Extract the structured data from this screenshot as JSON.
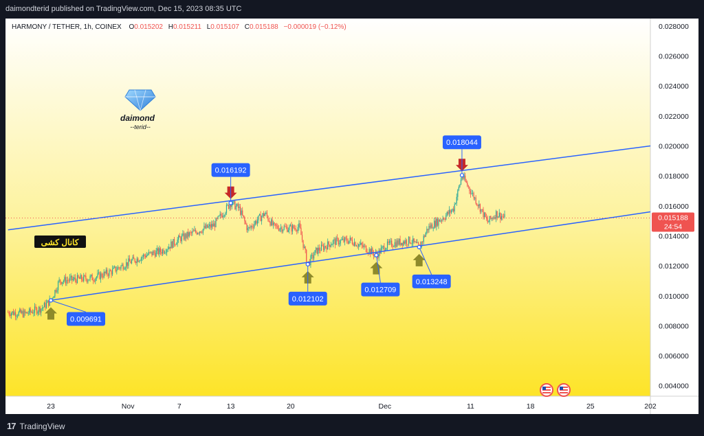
{
  "publisher": "daimondterid published on TradingView.com, Dec 15, 2023 08:35 UTC",
  "footer_brand": "TradingView",
  "watermark": {
    "brand": "daimond",
    "tag": "--terid--",
    "icon": "diamond-icon",
    "channel_label": "کانال کشی"
  },
  "chart_data": {
    "type": "candlestick",
    "symbol": "HARMONY / TETHER, 1h, COINEX",
    "ohlc": {
      "O": "0.015202",
      "H": "0.015211",
      "L": "0.015107",
      "C": "0.015188",
      "change": "−0.000019 (−0.12%)"
    },
    "last_price": "0.015188",
    "countdown": "24:54",
    "ylim": [
      0.0033,
      0.0285
    ],
    "y_ticks": [
      "0.028000",
      "0.026000",
      "0.024000",
      "0.022000",
      "0.020000",
      "0.018000",
      "0.016000",
      "0.014000",
      "0.012000",
      "0.010000",
      "0.008000",
      "0.006000",
      "0.004000"
    ],
    "x_ticks": [
      {
        "label": "23",
        "date": "2023-10-23"
      },
      {
        "label": "Nov",
        "date": "2023-11-01"
      },
      {
        "label": "7",
        "date": "2023-11-07"
      },
      {
        "label": "13",
        "date": "2023-11-13"
      },
      {
        "label": "20",
        "date": "2023-11-20"
      },
      {
        "label": "Dec",
        "date": "2023-12-01"
      },
      {
        "label": "11",
        "date": "2023-12-11"
      },
      {
        "label": "18",
        "date": "2023-12-18"
      },
      {
        "label": "25",
        "date": "2023-12-25"
      },
      {
        "label": "202",
        "date": "2024-01-01"
      }
    ],
    "price_path": [
      [
        "2023-10-18",
        0.0089
      ],
      [
        "2023-10-20",
        0.0088
      ],
      [
        "2023-10-22",
        0.0092
      ],
      [
        "2023-10-23",
        0.0097
      ],
      [
        "2023-10-24",
        0.011
      ],
      [
        "2023-10-26",
        0.0111
      ],
      [
        "2023-10-28",
        0.0112
      ],
      [
        "2023-10-30",
        0.0116
      ],
      [
        "2023-11-01",
        0.0122
      ],
      [
        "2023-11-03",
        0.0127
      ],
      [
        "2023-11-05",
        0.013
      ],
      [
        "2023-11-07",
        0.0138
      ],
      [
        "2023-11-09",
        0.0143
      ],
      [
        "2023-11-11",
        0.0147
      ],
      [
        "2023-11-13",
        0.0162
      ],
      [
        "2023-11-14",
        0.0158
      ],
      [
        "2023-11-15",
        0.0144
      ],
      [
        "2023-11-16",
        0.015
      ],
      [
        "2023-11-17",
        0.0155
      ],
      [
        "2023-11-18",
        0.0146
      ],
      [
        "2023-11-20",
        0.0145
      ],
      [
        "2023-11-21",
        0.0146
      ],
      [
        "2023-11-22",
        0.0121
      ],
      [
        "2023-11-23",
        0.013
      ],
      [
        "2023-11-25",
        0.0136
      ],
      [
        "2023-11-27",
        0.0137
      ],
      [
        "2023-11-29",
        0.0131
      ],
      [
        "2023-11-30",
        0.0127
      ],
      [
        "2023-12-01",
        0.0133
      ],
      [
        "2023-12-02",
        0.0135
      ],
      [
        "2023-12-04",
        0.0137
      ],
      [
        "2023-12-05",
        0.0132
      ],
      [
        "2023-12-06",
        0.0145
      ],
      [
        "2023-12-08",
        0.0153
      ],
      [
        "2023-12-09",
        0.0158
      ],
      [
        "2023-12-10",
        0.018
      ],
      [
        "2023-12-11",
        0.017
      ],
      [
        "2023-12-12",
        0.016
      ],
      [
        "2023-12-13",
        0.0149
      ],
      [
        "2023-12-14",
        0.0155
      ],
      [
        "2023-12-15",
        0.0152
      ]
    ],
    "channel": {
      "upper": [
        [
          "2023-10-18",
          0.0144
        ],
        [
          "2024-01-01",
          0.02
        ]
      ],
      "lower": [
        [
          "2023-10-23",
          0.0097
        ],
        [
          "2024-01-01",
          0.0156
        ]
      ]
    },
    "annotations": [
      {
        "label": "0.009691",
        "date": "2023-10-23",
        "price": 0.009691,
        "arrow": "up",
        "arrow_color": "#8e8a2a"
      },
      {
        "label": "0.016192",
        "date": "2023-11-13",
        "price": 0.016192,
        "arrow": "down",
        "arrow_color": "#c62828"
      },
      {
        "label": "0.012102",
        "date": "2023-11-22",
        "price": 0.012102,
        "arrow": "up",
        "arrow_color": "#8e8a2a"
      },
      {
        "label": "0.012709",
        "date": "2023-11-30",
        "price": 0.012709,
        "arrow": "up",
        "arrow_color": "#8e8a2a"
      },
      {
        "label": "0.013248",
        "date": "2023-12-05",
        "price": 0.013248,
        "arrow": "up",
        "arrow_color": "#8e8a2a"
      },
      {
        "label": "0.018044",
        "date": "2023-12-10",
        "price": 0.018044,
        "arrow": "down",
        "arrow_color": "#c62828"
      }
    ],
    "colors": {
      "up": "#26a69a",
      "down": "#ef5350",
      "channel": "#2962ff",
      "label_bg": "#2962ff",
      "bg_top": "#ffffff",
      "bg_bottom": "#fde428"
    }
  }
}
